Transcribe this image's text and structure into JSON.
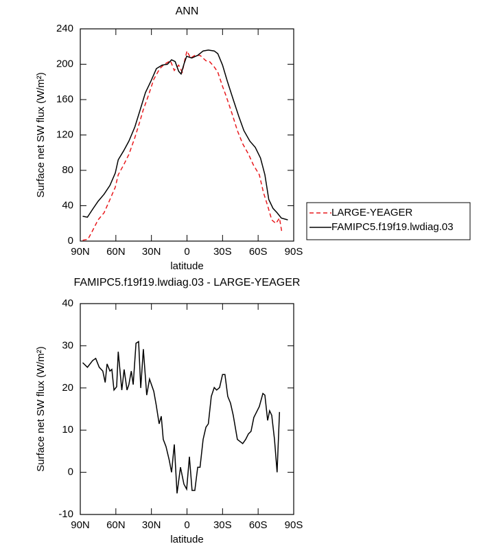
{
  "chart_data": [
    {
      "type": "line",
      "title": "ANN",
      "xlabel": "latitude",
      "ylabel": "Surface net SW flux (W/m²)",
      "xlim": [
        90,
        -90
      ],
      "xticks": [
        {
          "value": 90,
          "label": "90N"
        },
        {
          "value": 60,
          "label": "60N"
        },
        {
          "value": 30,
          "label": "30N"
        },
        0,
        {
          "value": -30,
          "label": "30S"
        },
        {
          "value": -60,
          "label": "60S"
        },
        {
          "value": -90,
          "label": "90S"
        }
      ],
      "ylim": [
        0,
        240
      ],
      "yticks": [
        0,
        40,
        80,
        120,
        160,
        200,
        240
      ],
      "legend": "right",
      "series": [
        {
          "name": "LARGE-YEAGER",
          "color": "#e8181c",
          "linestyle": "dashed",
          "x": [
            88,
            83.6,
            79.6,
            75,
            70,
            65,
            60.5,
            58,
            53.5,
            49,
            44,
            39.6,
            37,
            32.7,
            28,
            23,
            19,
            14,
            10.7,
            7,
            4,
            1.5,
            0,
            -3,
            -6.6,
            -11,
            -16,
            -19,
            -23,
            -26,
            -30,
            -33,
            -38,
            -42.5,
            -47,
            -52,
            -56,
            -61,
            -64.5,
            -68,
            -71.5,
            -75,
            -78,
            -80
          ],
          "values": [
            1,
            2,
            12,
            24,
            32,
            47,
            61,
            75,
            86,
            98,
            117,
            136,
            148,
            164,
            183,
            195,
            200,
            204,
            193,
            199,
            191,
            207,
            215,
            207,
            210,
            210,
            204,
            203,
            197,
            191,
            175,
            164,
            144,
            125,
            110,
            98,
            86,
            75,
            55,
            40,
            24,
            20,
            26,
            10
          ]
        },
        {
          "name": "FAMIPC5.f19f19.lwdiag.03",
          "color": "#000000",
          "linestyle": "solid",
          "x": [
            88,
            84,
            79.6,
            75,
            70,
            65,
            60.5,
            58,
            53.5,
            49,
            44,
            39.6,
            35,
            30.4,
            25.8,
            21,
            16.5,
            13,
            10,
            7,
            5,
            2.6,
            0.3,
            -4,
            -9,
            -13.6,
            -18,
            -23,
            -26,
            -30,
            -34,
            -39,
            -43.7,
            -48,
            -53,
            -57.6,
            -62,
            -65.7,
            -69,
            -72.6,
            -76,
            -79.6,
            -85
          ],
          "values": [
            28,
            27,
            36,
            45,
            53,
            63,
            77,
            92,
            102,
            113,
            129,
            148,
            168,
            181,
            195,
            199,
            200,
            205,
            203,
            192,
            189,
            200,
            209,
            207,
            210,
            215,
            216,
            215,
            212,
            199,
            181,
            160,
            141,
            125,
            113,
            106,
            94,
            75,
            47,
            37,
            32,
            26,
            24
          ]
        }
      ]
    },
    {
      "type": "line",
      "title": "FAMIPC5.f19f19.lwdiag.03 - LARGE-YEAGER",
      "xlabel": "latitude",
      "ylabel": "Surface net SW flux (W/m²)",
      "xlim": [
        90,
        -90
      ],
      "xticks": [
        {
          "value": 90,
          "label": "90N"
        },
        {
          "value": 60,
          "label": "60N"
        },
        {
          "value": 30,
          "label": "30N"
        },
        0,
        {
          "value": -30,
          "label": "30S"
        },
        {
          "value": -60,
          "label": "60S"
        },
        {
          "value": -90,
          "label": "90S"
        }
      ],
      "ylim": [
        -10,
        40
      ],
      "yticks": [
        -10,
        0,
        10,
        20,
        30,
        40
      ],
      "series": [
        {
          "color": "#000000",
          "linestyle": "solid",
          "x": [
            88,
            84,
            79.6,
            77,
            74,
            71,
            69,
            67.4,
            65,
            63.4,
            61.6,
            59.3,
            58,
            55,
            53,
            50.6,
            49,
            47,
            45.4,
            43,
            40.8,
            39,
            36.8,
            34,
            31.6,
            28,
            26,
            23.5,
            21.7,
            20,
            17.7,
            15,
            13,
            10.7,
            8.4,
            5.5,
            2.6,
            0.3,
            -2,
            -4.3,
            -6.6,
            -9,
            -11,
            -13.6,
            -16,
            -18,
            -20.5,
            -23,
            -25,
            -27.5,
            -30,
            -32,
            -34.4,
            -36.7,
            -39,
            -42.5,
            -47,
            -49.5,
            -51.8,
            -54,
            -56.4,
            -58.7,
            -61,
            -64,
            -65.7,
            -68,
            -69.7,
            -71.5,
            -73.8,
            -76,
            -78
          ],
          "values": [
            26,
            24.9,
            26.5,
            27,
            24.9,
            24,
            21.3,
            25.7,
            24,
            24.4,
            19.5,
            20.3,
            28.6,
            19.5,
            24.4,
            19.5,
            20.8,
            24,
            20.8,
            30.6,
            31,
            20,
            29.2,
            18.3,
            22.1,
            19.2,
            16,
            11.5,
            13.3,
            7.8,
            6.1,
            2.9,
            0,
            6.6,
            -5,
            1.2,
            -2.8,
            -4,
            3.7,
            -4.3,
            -4.3,
            1.2,
            1.2,
            7.8,
            10.7,
            11.5,
            18,
            20.1,
            19.5,
            20.1,
            23.2,
            23.2,
            18,
            16.4,
            13.5,
            7.8,
            6.8,
            7.8,
            9.1,
            9.7,
            13,
            14.3,
            15.6,
            18.7,
            18.3,
            12.3,
            14.6,
            13.5,
            7.8,
            0,
            14.3
          ]
        }
      ]
    }
  ]
}
